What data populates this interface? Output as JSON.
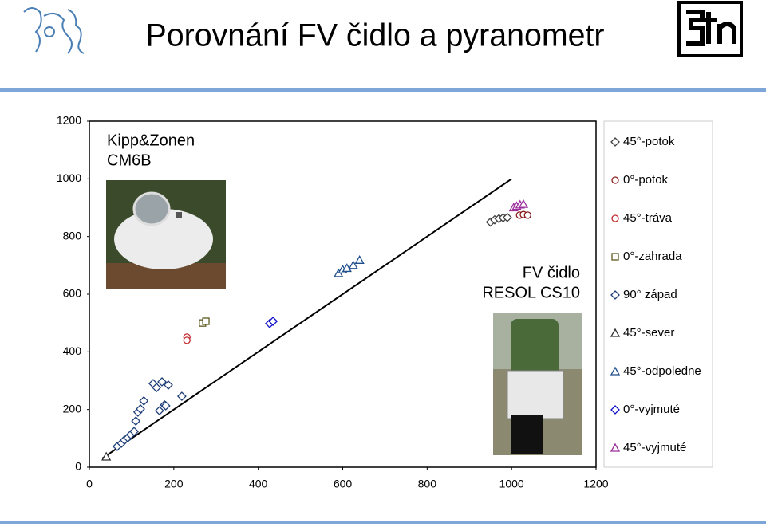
{
  "chart_data": {
    "type": "scatter",
    "title": "Porovnání FV čidlo a pyranometr",
    "annotations": [
      [
        "Kipp&Zonen",
        "CM6B"
      ],
      [
        "FV čidlo",
        "RESOL CS10"
      ]
    ],
    "xlim": [
      0,
      1200
    ],
    "ylim": [
      0,
      1200
    ],
    "xticks": [
      0,
      200,
      400,
      600,
      800,
      1000,
      1200
    ],
    "yticks": [
      0,
      200,
      400,
      600,
      800,
      1000,
      1200
    ],
    "reference_line": {
      "x": [
        30,
        1000
      ],
      "values": [
        30,
        1000
      ],
      "color": "#000000"
    },
    "legend": "right",
    "series": [
      {
        "name": "45°-potok",
        "color": "#404040",
        "marker": "diamond",
        "x": [
          950,
          960,
          970,
          980,
          990
        ],
        "values": [
          850,
          858,
          862,
          865,
          866
        ]
      },
      {
        "name": "0°-potok",
        "color": "#8b1a1a",
        "marker": "circle",
        "x": [
          1019,
          1028,
          1038
        ],
        "values": [
          874,
          876,
          874
        ]
      },
      {
        "name": "45°-tráva",
        "color": "#c0282d",
        "marker": "circle",
        "x": [
          231,
          231
        ],
        "values": [
          451,
          440
        ]
      },
      {
        "name": "0°-zahrada",
        "color": "#5c5a1e",
        "marker": "square",
        "x": [
          268,
          276
        ],
        "values": [
          500,
          506
        ]
      },
      {
        "name": "90° západ",
        "color": "#1f3f7a",
        "marker": "diamond",
        "x": [
          66,
          76,
          83,
          91,
          98,
          106,
          110,
          115,
          121,
          129,
          151,
          159,
          166,
          172,
          178,
          187,
          181,
          219
        ],
        "values": [
          72,
          83,
          94,
          102,
          113,
          124,
          160,
          191,
          202,
          230,
          290,
          276,
          196,
          296,
          216,
          285,
          213,
          246
        ]
      },
      {
        "name": "45°-sever",
        "color": "#303030",
        "marker": "triangle",
        "x": [
          40
        ],
        "values": [
          36
        ]
      },
      {
        "name": "45°-odpoledne",
        "color": "#1f4e8c",
        "marker": "triangle",
        "x": [
          590,
          600,
          610,
          625,
          640
        ],
        "values": [
          672,
          685,
          690,
          700,
          718
        ]
      },
      {
        "name": "0°-vyjmuté",
        "color": "#1010c8",
        "marker": "diamond",
        "x": [
          427,
          435
        ],
        "values": [
          498,
          506
        ]
      },
      {
        "name": "45°-vyjmuté",
        "color": "#9b2f9b",
        "marker": "triangle",
        "x": [
          1005,
          1012,
          1020,
          1028
        ],
        "values": [
          900,
          905,
          910,
          912
        ]
      }
    ]
  }
}
